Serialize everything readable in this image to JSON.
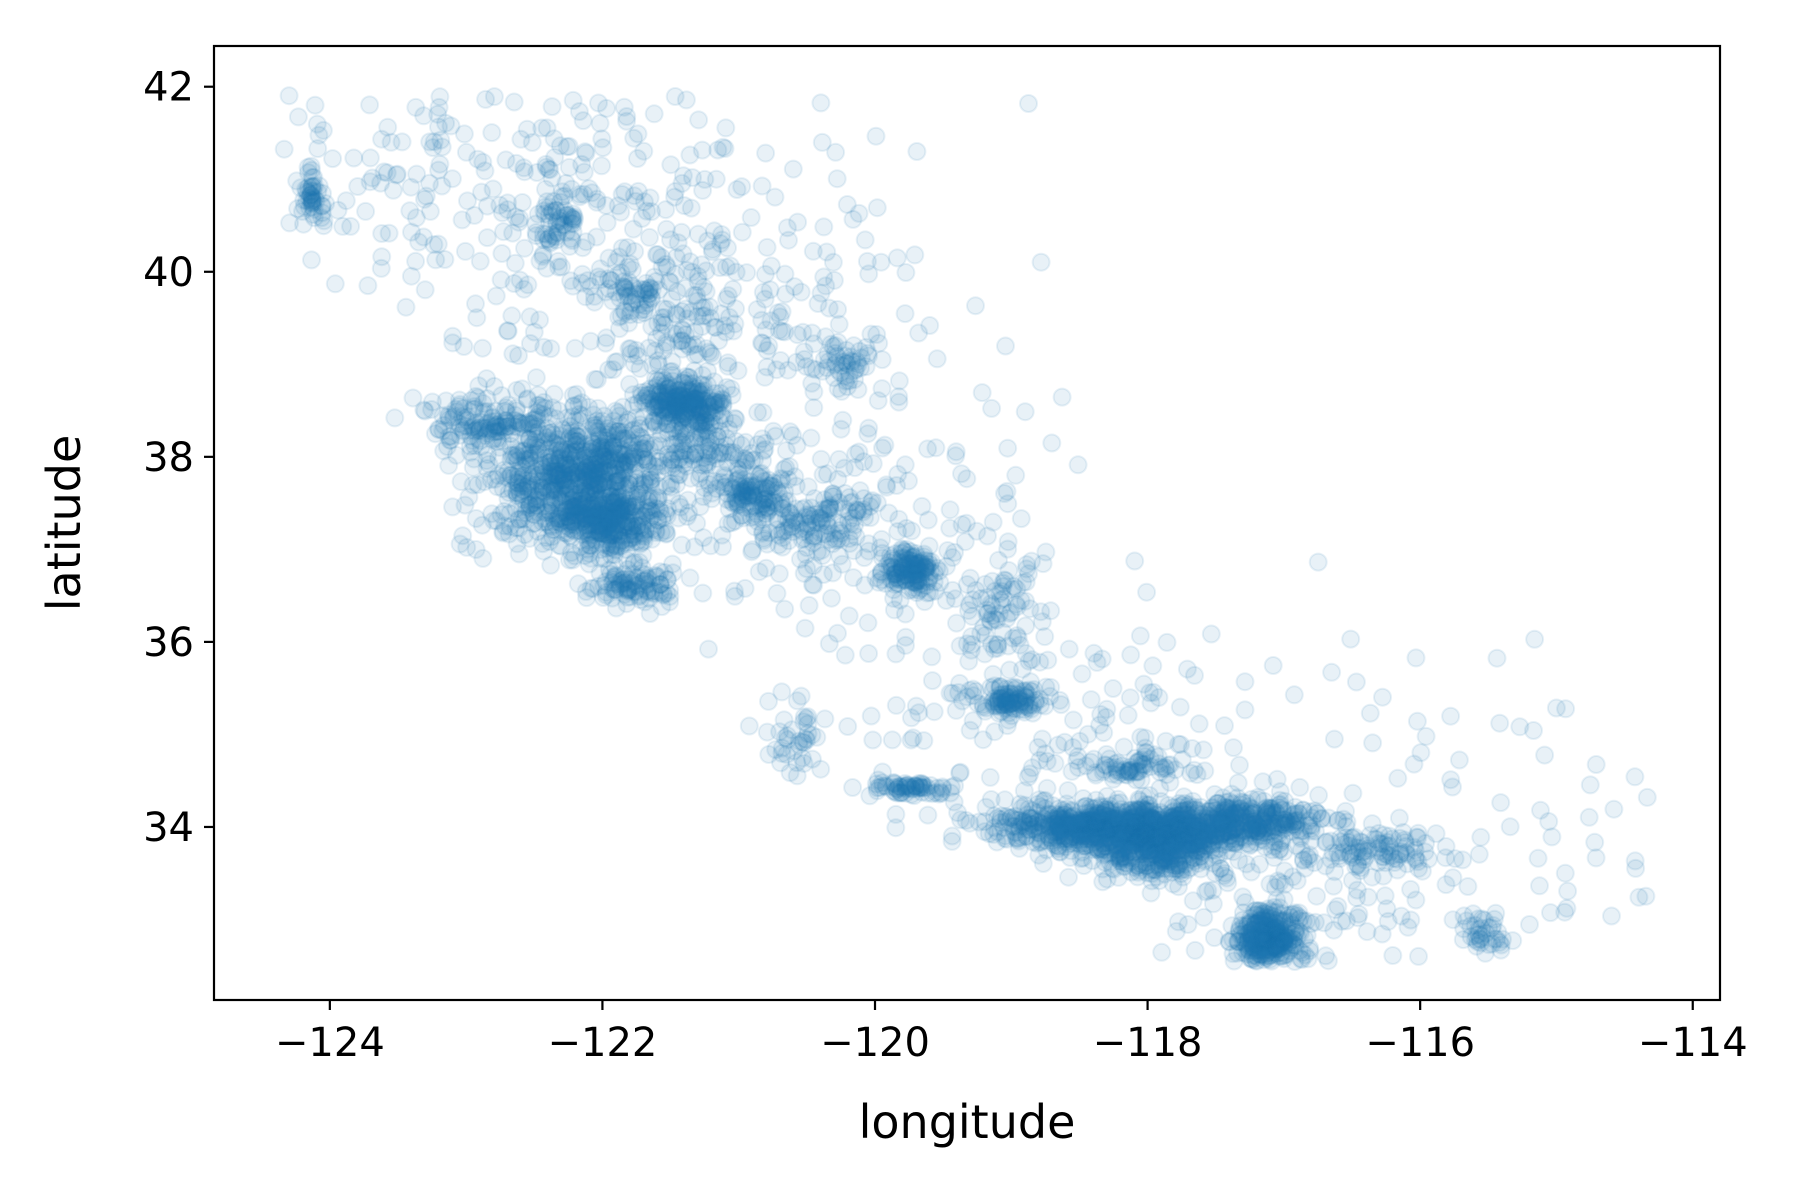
{
  "chart_data": {
    "type": "scatter",
    "title": "",
    "xlabel": "longitude",
    "ylabel": "latitude",
    "xlim": [
      -124.85,
      -113.8
    ],
    "ylim": [
      32.13,
      42.44
    ],
    "xticks": [
      -124,
      -122,
      -120,
      -118,
      -116,
      -114
    ],
    "yticks": [
      34,
      36,
      38,
      40,
      42
    ],
    "xtick_labels": [
      "−124",
      "−122",
      "−120",
      "−118",
      "−116",
      "−114"
    ],
    "ytick_labels": [
      "34",
      "36",
      "38",
      "40",
      "42"
    ],
    "grid": false,
    "legend": "none",
    "marker_color": "#1f77b4",
    "marker_alpha": 0.1,
    "clusters": [
      {
        "center": [
          -122.25,
          37.75
        ],
        "spread": [
          0.35,
          0.35
        ],
        "count": 700
      },
      {
        "center": [
          -121.95,
          37.3
        ],
        "spread": [
          0.2,
          0.2
        ],
        "count": 300
      },
      {
        "center": [
          -118.2,
          34.0
        ],
        "spread": [
          0.45,
          0.12
        ],
        "count": 900
      },
      {
        "center": [
          -117.9,
          33.75
        ],
        "spread": [
          0.25,
          0.15
        ],
        "count": 400
      },
      {
        "center": [
          -117.1,
          32.8
        ],
        "spread": [
          0.12,
          0.15
        ],
        "count": 350
      },
      {
        "center": [
          -121.4,
          38.6
        ],
        "spread": [
          0.15,
          0.12
        ],
        "count": 250
      },
      {
        "center": [
          -119.75,
          36.75
        ],
        "spread": [
          0.12,
          0.1
        ],
        "count": 150
      },
      {
        "center": [
          -119.0,
          35.37
        ],
        "spread": [
          0.1,
          0.08
        ],
        "count": 100
      },
      {
        "center": [
          -117.3,
          34.05
        ],
        "spread": [
          0.3,
          0.12
        ],
        "count": 300
      },
      {
        "center": [
          -120.9,
          37.6
        ],
        "spread": [
          0.15,
          0.15
        ],
        "count": 120
      },
      {
        "center": [
          -120.4,
          37.3
        ],
        "spread": [
          0.25,
          0.15
        ],
        "count": 90
      },
      {
        "center": [
          -122.85,
          38.4
        ],
        "spread": [
          0.25,
          0.15
        ],
        "count": 120
      },
      {
        "center": [
          -119.75,
          34.42
        ],
        "spread": [
          0.15,
          0.03
        ],
        "count": 70
      },
      {
        "center": [
          -121.8,
          36.6
        ],
        "spread": [
          0.15,
          0.1
        ],
        "count": 60
      },
      {
        "center": [
          -124.15,
          40.8
        ],
        "spread": [
          0.05,
          0.15
        ],
        "count": 50
      },
      {
        "center": [
          -122.35,
          40.55
        ],
        "spread": [
          0.1,
          0.15
        ],
        "count": 50
      },
      {
        "center": [
          -121.8,
          39.73
        ],
        "spread": [
          0.1,
          0.1
        ],
        "count": 40
      },
      {
        "center": [
          -115.5,
          32.85
        ],
        "spread": [
          0.1,
          0.1
        ],
        "count": 40
      },
      {
        "center": [
          -116.3,
          33.75
        ],
        "spread": [
          0.25,
          0.1
        ],
        "count": 80
      },
      {
        "center": [
          -118.1,
          34.65
        ],
        "spread": [
          0.15,
          0.08
        ],
        "count": 60
      },
      {
        "center": [
          -121.65,
          36.6
        ],
        "spread": [
          0.2,
          0.1
        ],
        "count": 40
      },
      {
        "center": [
          -120.6,
          34.9
        ],
        "spread": [
          0.1,
          0.25
        ],
        "count": 40
      },
      {
        "center": [
          -119.1,
          36.35
        ],
        "spread": [
          0.15,
          0.25
        ],
        "count": 60
      },
      {
        "center": [
          -120.2,
          39.0
        ],
        "spread": [
          0.12,
          0.15
        ],
        "count": 40
      },
      {
        "center": [
          -121.4,
          39.4
        ],
        "spread": [
          0.15,
          0.3
        ],
        "count": 60
      },
      {
        "center": [
          -122.0,
          38.1
        ],
        "spread": [
          0.2,
          0.2
        ],
        "count": 120
      },
      {
        "center": [
          -121.25,
          38.1
        ],
        "spread": [
          0.2,
          0.2
        ],
        "count": 120
      },
      {
        "center": [
          -122.5,
          41.0
        ],
        "spread": [
          0.9,
          0.7
        ],
        "count": 260
      },
      {
        "center": [
          -121.2,
          39.5
        ],
        "spread": [
          0.9,
          0.7
        ],
        "count": 260
      },
      {
        "center": [
          -120.2,
          37.2
        ],
        "spread": [
          0.7,
          0.6
        ],
        "count": 200
      },
      {
        "center": [
          -118.6,
          35.2
        ],
        "spread": [
          0.8,
          0.6
        ],
        "count": 160
      },
      {
        "center": [
          -116.8,
          33.6
        ],
        "spread": [
          0.7,
          0.5
        ],
        "count": 160
      },
      {
        "center": [
          -114.8,
          33.6
        ],
        "spread": [
          0.5,
          0.6
        ],
        "count": 30
      },
      {
        "center": [
          -115.7,
          34.8
        ],
        "spread": [
          0.6,
          0.7
        ],
        "count": 25
      }
    ]
  }
}
